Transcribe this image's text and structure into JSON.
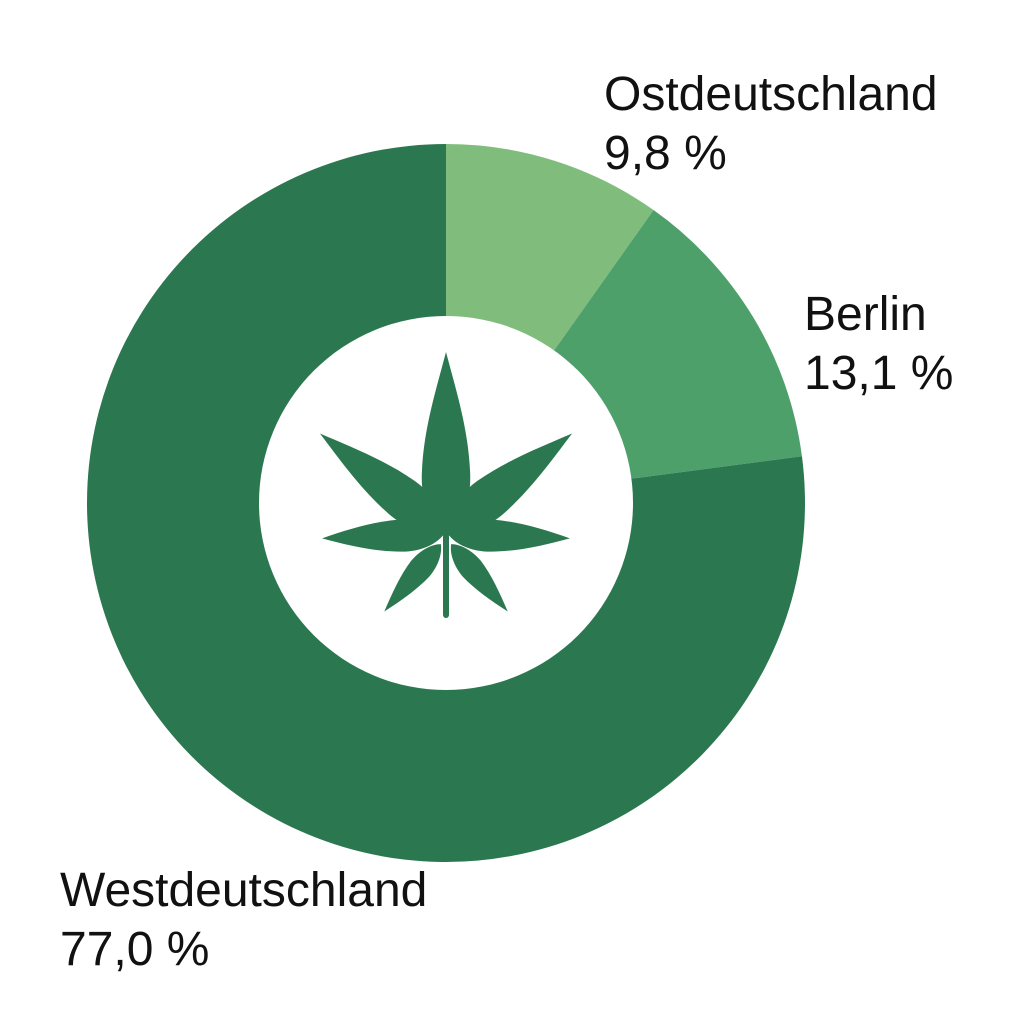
{
  "chart_data": {
    "type": "pie",
    "style": "donut",
    "slices": [
      {
        "name": "Ostdeutschland",
        "value": 9.8,
        "value_label": "9,8 %",
        "color": "#80bd7c"
      },
      {
        "name": "Berlin",
        "value": 13.1,
        "value_label": "13,1 %",
        "color": "#4ea06b"
      },
      {
        "name": "Westdeutschland",
        "value": 77.0,
        "value_label": "77,0 %",
        "color": "#2b7850"
      }
    ],
    "start_angle": "12 o'clock",
    "direction": "clockwise",
    "legend": "none",
    "center_icon": "cannabis-leaf-icon",
    "center_icon_color": "#2b7850"
  }
}
